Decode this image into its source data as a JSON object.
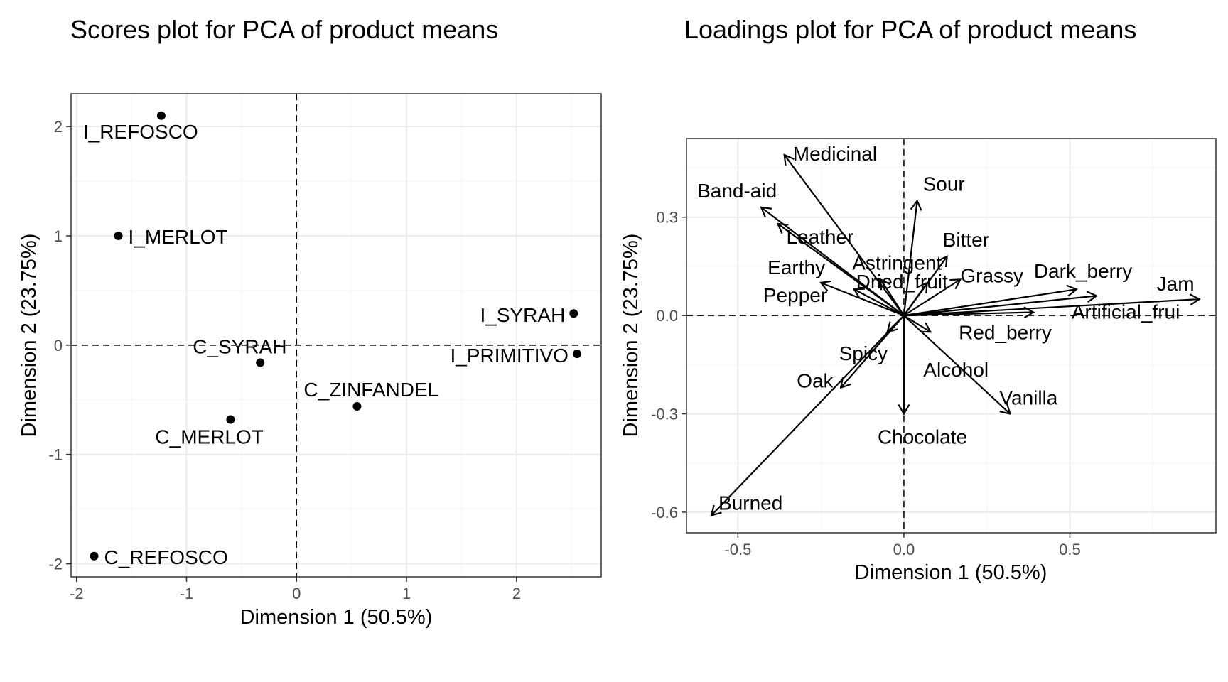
{
  "chart_data": [
    {
      "type": "scatter",
      "title": "Scores plot for PCA of product means",
      "xlabel": "Dimension 1 (50.5%)",
      "ylabel": "Dimension 2 (23.75%)",
      "xlim": [
        -2.05,
        2.77
      ],
      "ylim": [
        -2.12,
        2.3
      ],
      "xticks": [
        -2,
        -1,
        0,
        1,
        2
      ],
      "yticks": [
        -2,
        -1,
        0,
        1,
        2
      ],
      "xtick_labels": [
        "-2",
        "-1",
        "0",
        "1",
        "2"
      ],
      "ytick_labels": [
        "-2",
        "-1",
        "0",
        "1",
        "2"
      ],
      "grid": true,
      "reference_lines": {
        "x": 0,
        "y": 0
      },
      "points": [
        {
          "label": "I_REFOSCO",
          "x": -1.23,
          "y": 2.1
        },
        {
          "label": "I_MERLOT",
          "x": -1.62,
          "y": 1.0
        },
        {
          "label": "I_SYRAH",
          "x": 2.52,
          "y": 0.29
        },
        {
          "label": "I_PRIMITIVO",
          "x": 2.55,
          "y": -0.08
        },
        {
          "label": "C_SYRAH",
          "x": -0.33,
          "y": -0.16
        },
        {
          "label": "C_ZINFANDEL",
          "x": 0.55,
          "y": -0.56
        },
        {
          "label": "C_MERLOT",
          "x": -0.6,
          "y": -0.68
        },
        {
          "label": "C_REFOSCO",
          "x": -1.84,
          "y": -1.93
        }
      ]
    },
    {
      "type": "vector",
      "title": "Loadings plot for PCA of product means",
      "xlabel": "Dimension 1 (50.5%)",
      "ylabel": "Dimension 2 (23.75%)",
      "xlim": [
        -0.655,
        0.94
      ],
      "ylim": [
        -0.663,
        0.54
      ],
      "xticks": [
        -0.5,
        0.0,
        0.5
      ],
      "yticks": [
        -0.6,
        -0.3,
        0.0,
        0.3
      ],
      "xtick_labels": [
        "-0.5",
        "0.0",
        "0.5"
      ],
      "ytick_labels": [
        "-0.6",
        "-0.3",
        "0.0",
        "0.3"
      ],
      "grid": true,
      "reference_lines": {
        "x": 0,
        "y": 0
      },
      "vectors": [
        {
          "label": "Medicinal",
          "x": -0.36,
          "y": 0.49
        },
        {
          "label": "Band-aid",
          "x": -0.43,
          "y": 0.33
        },
        {
          "label": "Leather",
          "x": -0.38,
          "y": 0.28
        },
        {
          "label": "Earthy",
          "x": -0.25,
          "y": 0.1
        },
        {
          "label": "Pepper",
          "x": -0.15,
          "y": 0.08
        },
        {
          "label": "Astringent",
          "x": -0.07,
          "y": 0.11
        },
        {
          "label": "Dried_fruit",
          "x": 0.07,
          "y": 0.1
        },
        {
          "label": "Sour",
          "x": 0.04,
          "y": 0.35
        },
        {
          "label": "Bitter",
          "x": 0.13,
          "y": 0.18
        },
        {
          "label": "Grassy",
          "x": 0.17,
          "y": 0.11
        },
        {
          "label": "Dark_berry",
          "x": 0.52,
          "y": 0.08
        },
        {
          "label": "Jam",
          "x": 0.89,
          "y": 0.05
        },
        {
          "label": "Artificial_frui",
          "x": 0.58,
          "y": 0.06
        },
        {
          "label": "Red_berry",
          "x": 0.39,
          "y": 0.01
        },
        {
          "label": "Spicy",
          "x": -0.05,
          "y": -0.05
        },
        {
          "label": "Alcohol",
          "x": 0.08,
          "y": -0.05
        },
        {
          "label": "Oak",
          "x": -0.19,
          "y": -0.22
        },
        {
          "label": "Chocolate",
          "x": 0.0,
          "y": -0.3
        },
        {
          "label": "Vanilla",
          "x": 0.32,
          "y": -0.3
        },
        {
          "label": "Burned",
          "x": -0.58,
          "y": -0.61
        }
      ]
    }
  ]
}
